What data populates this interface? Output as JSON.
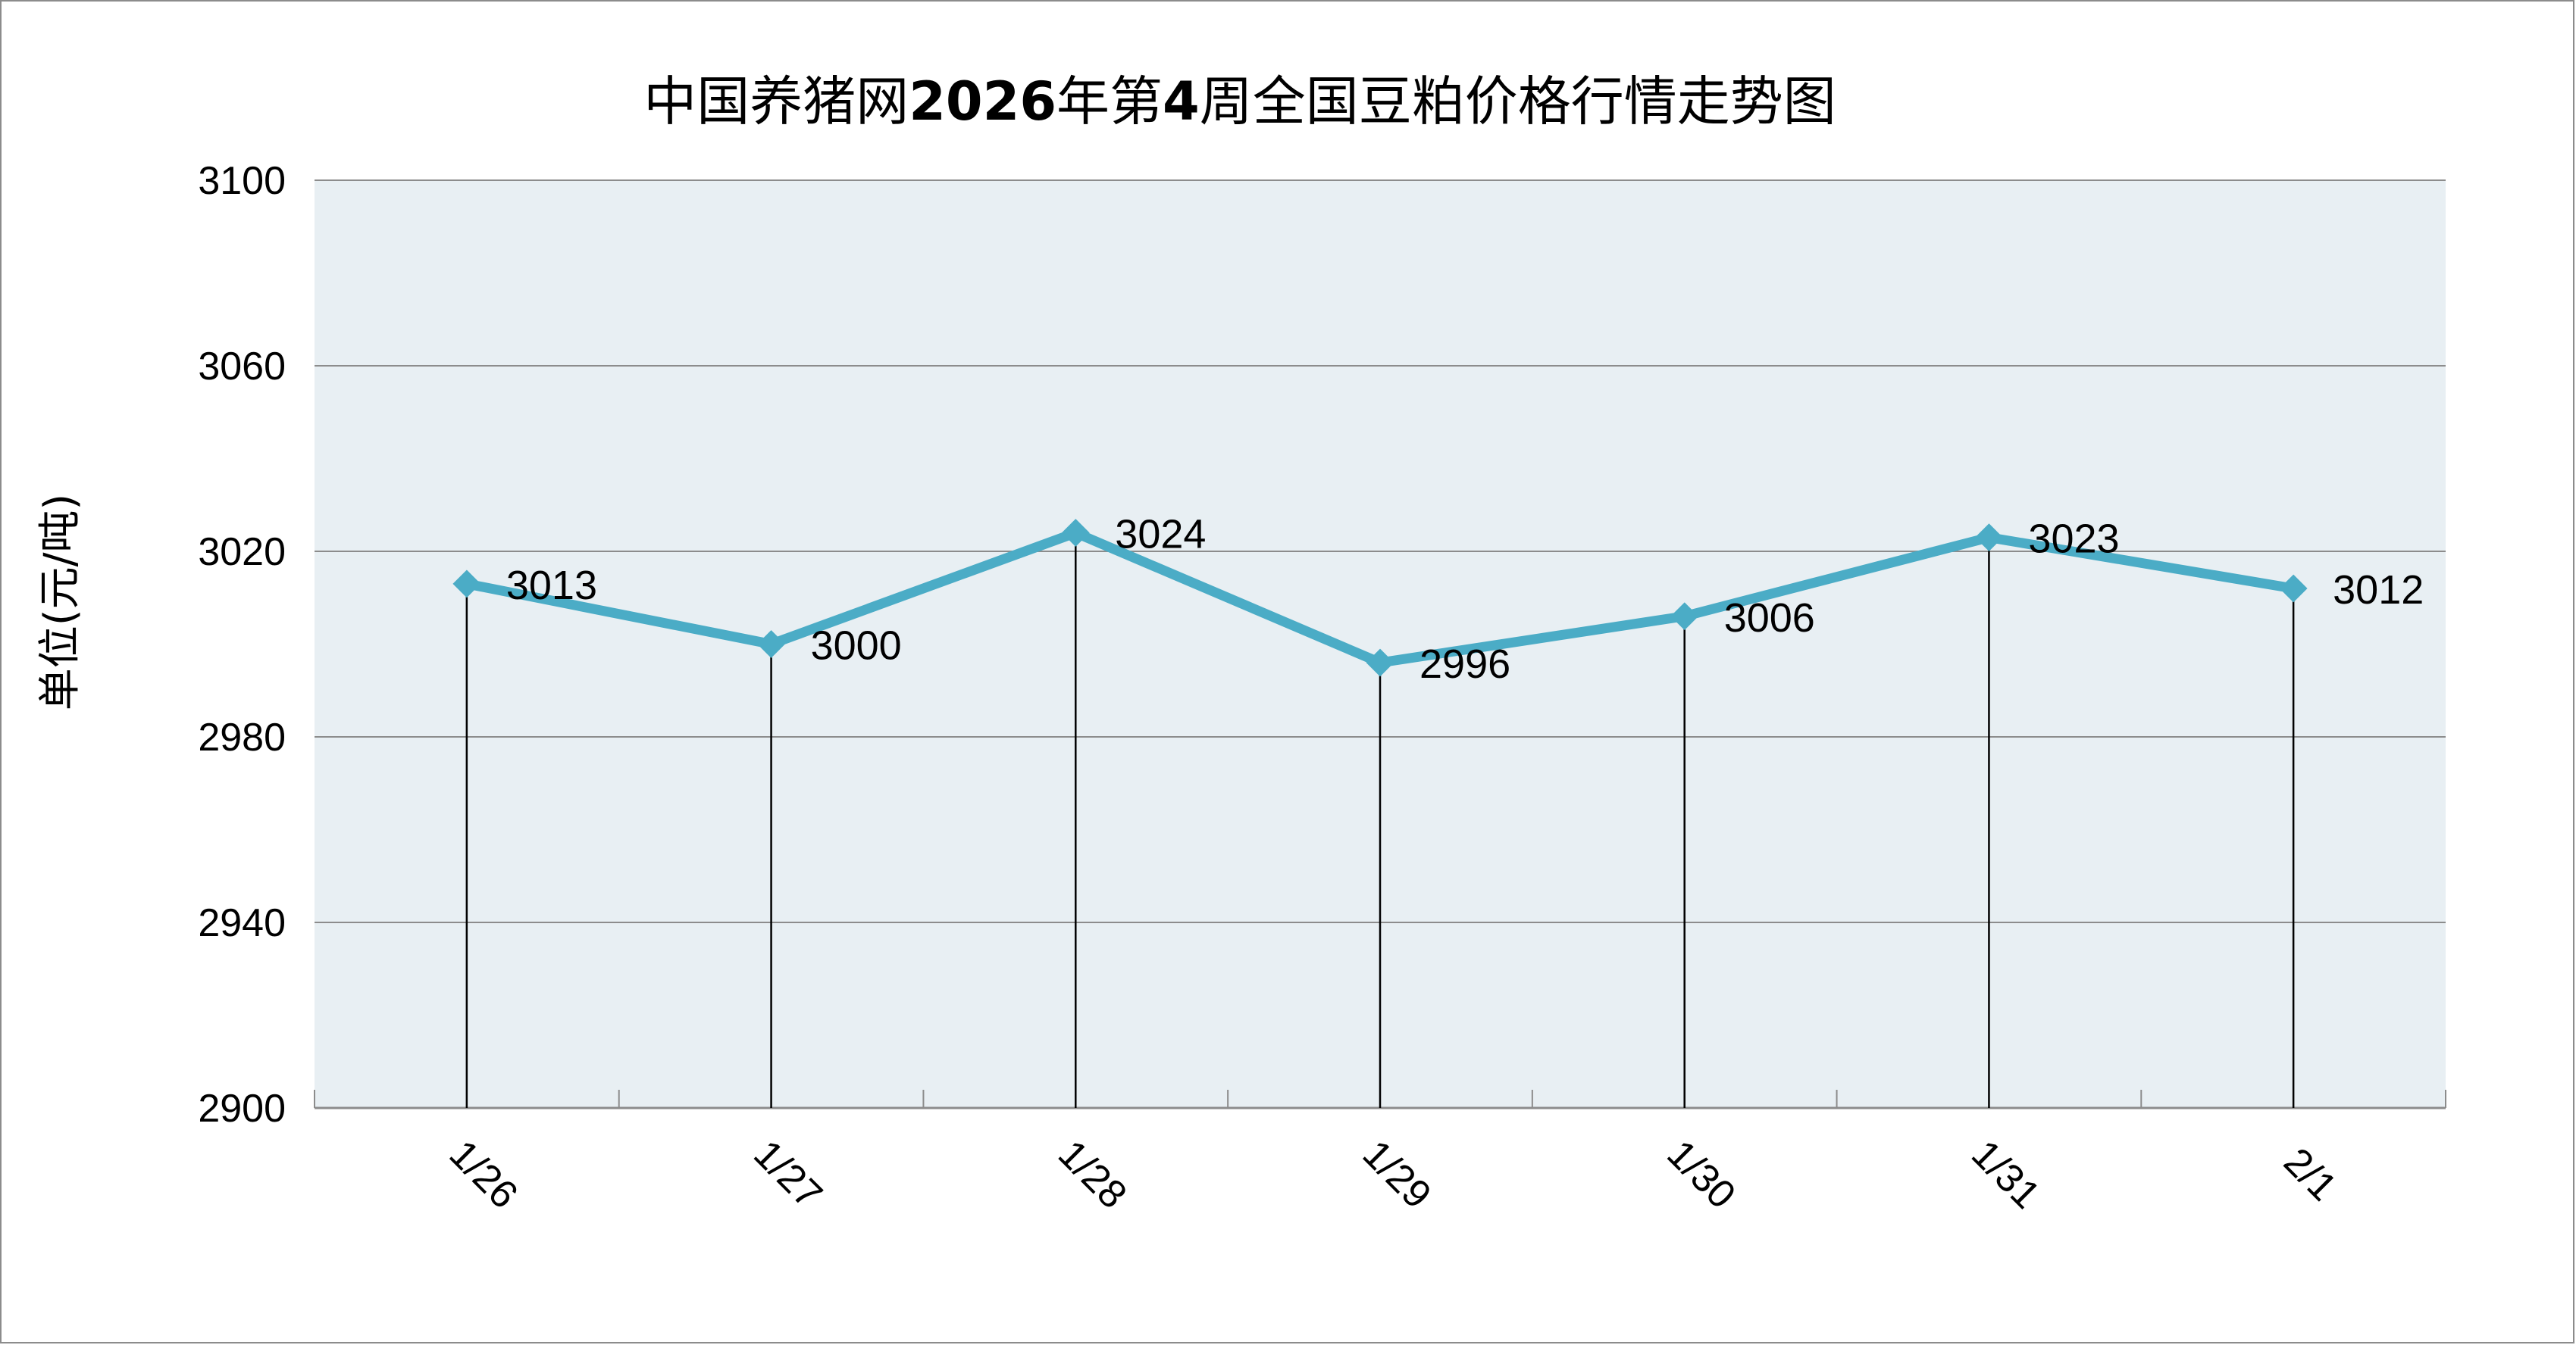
{
  "chart_data": {
    "type": "line",
    "title": "中国养猪网2026年第4周全国豆粕价格行情走势图",
    "title_parts": [
      {
        "text": "中国养猪网",
        "bold": false
      },
      {
        "text": "2026",
        "bold": true
      },
      {
        "text": "年第",
        "bold": false
      },
      {
        "text": "4",
        "bold": true
      },
      {
        "text": "周全国豆粕价格行情走势图",
        "bold": false
      }
    ],
    "xlabel": "",
    "ylabel": "单位(元/吨)",
    "categories": [
      "1/26",
      "1/27",
      "1/28",
      "1/29",
      "1/30",
      "1/31",
      "2/1"
    ],
    "series": [
      {
        "values": [
          3013,
          3000,
          3024,
          2996,
          3006,
          3023,
          3012
        ]
      }
    ],
    "data_labels": [
      "3013",
      "3000",
      "3024",
      "2996",
      "3006",
      "3023",
      "3012"
    ],
    "ylim": [
      2900,
      3100
    ],
    "yticks": [
      2900,
      2940,
      2980,
      3020,
      3060,
      3100
    ],
    "grid": "horizontal",
    "drop_lines": true,
    "marker": "diamond",
    "legend": "none",
    "colors": {
      "line": "#4bacc6",
      "plot_background": "#e8eff3",
      "gridline": "#8c8c8c",
      "drop_line": "#000000",
      "frame_border": "#8c8c8c"
    }
  }
}
